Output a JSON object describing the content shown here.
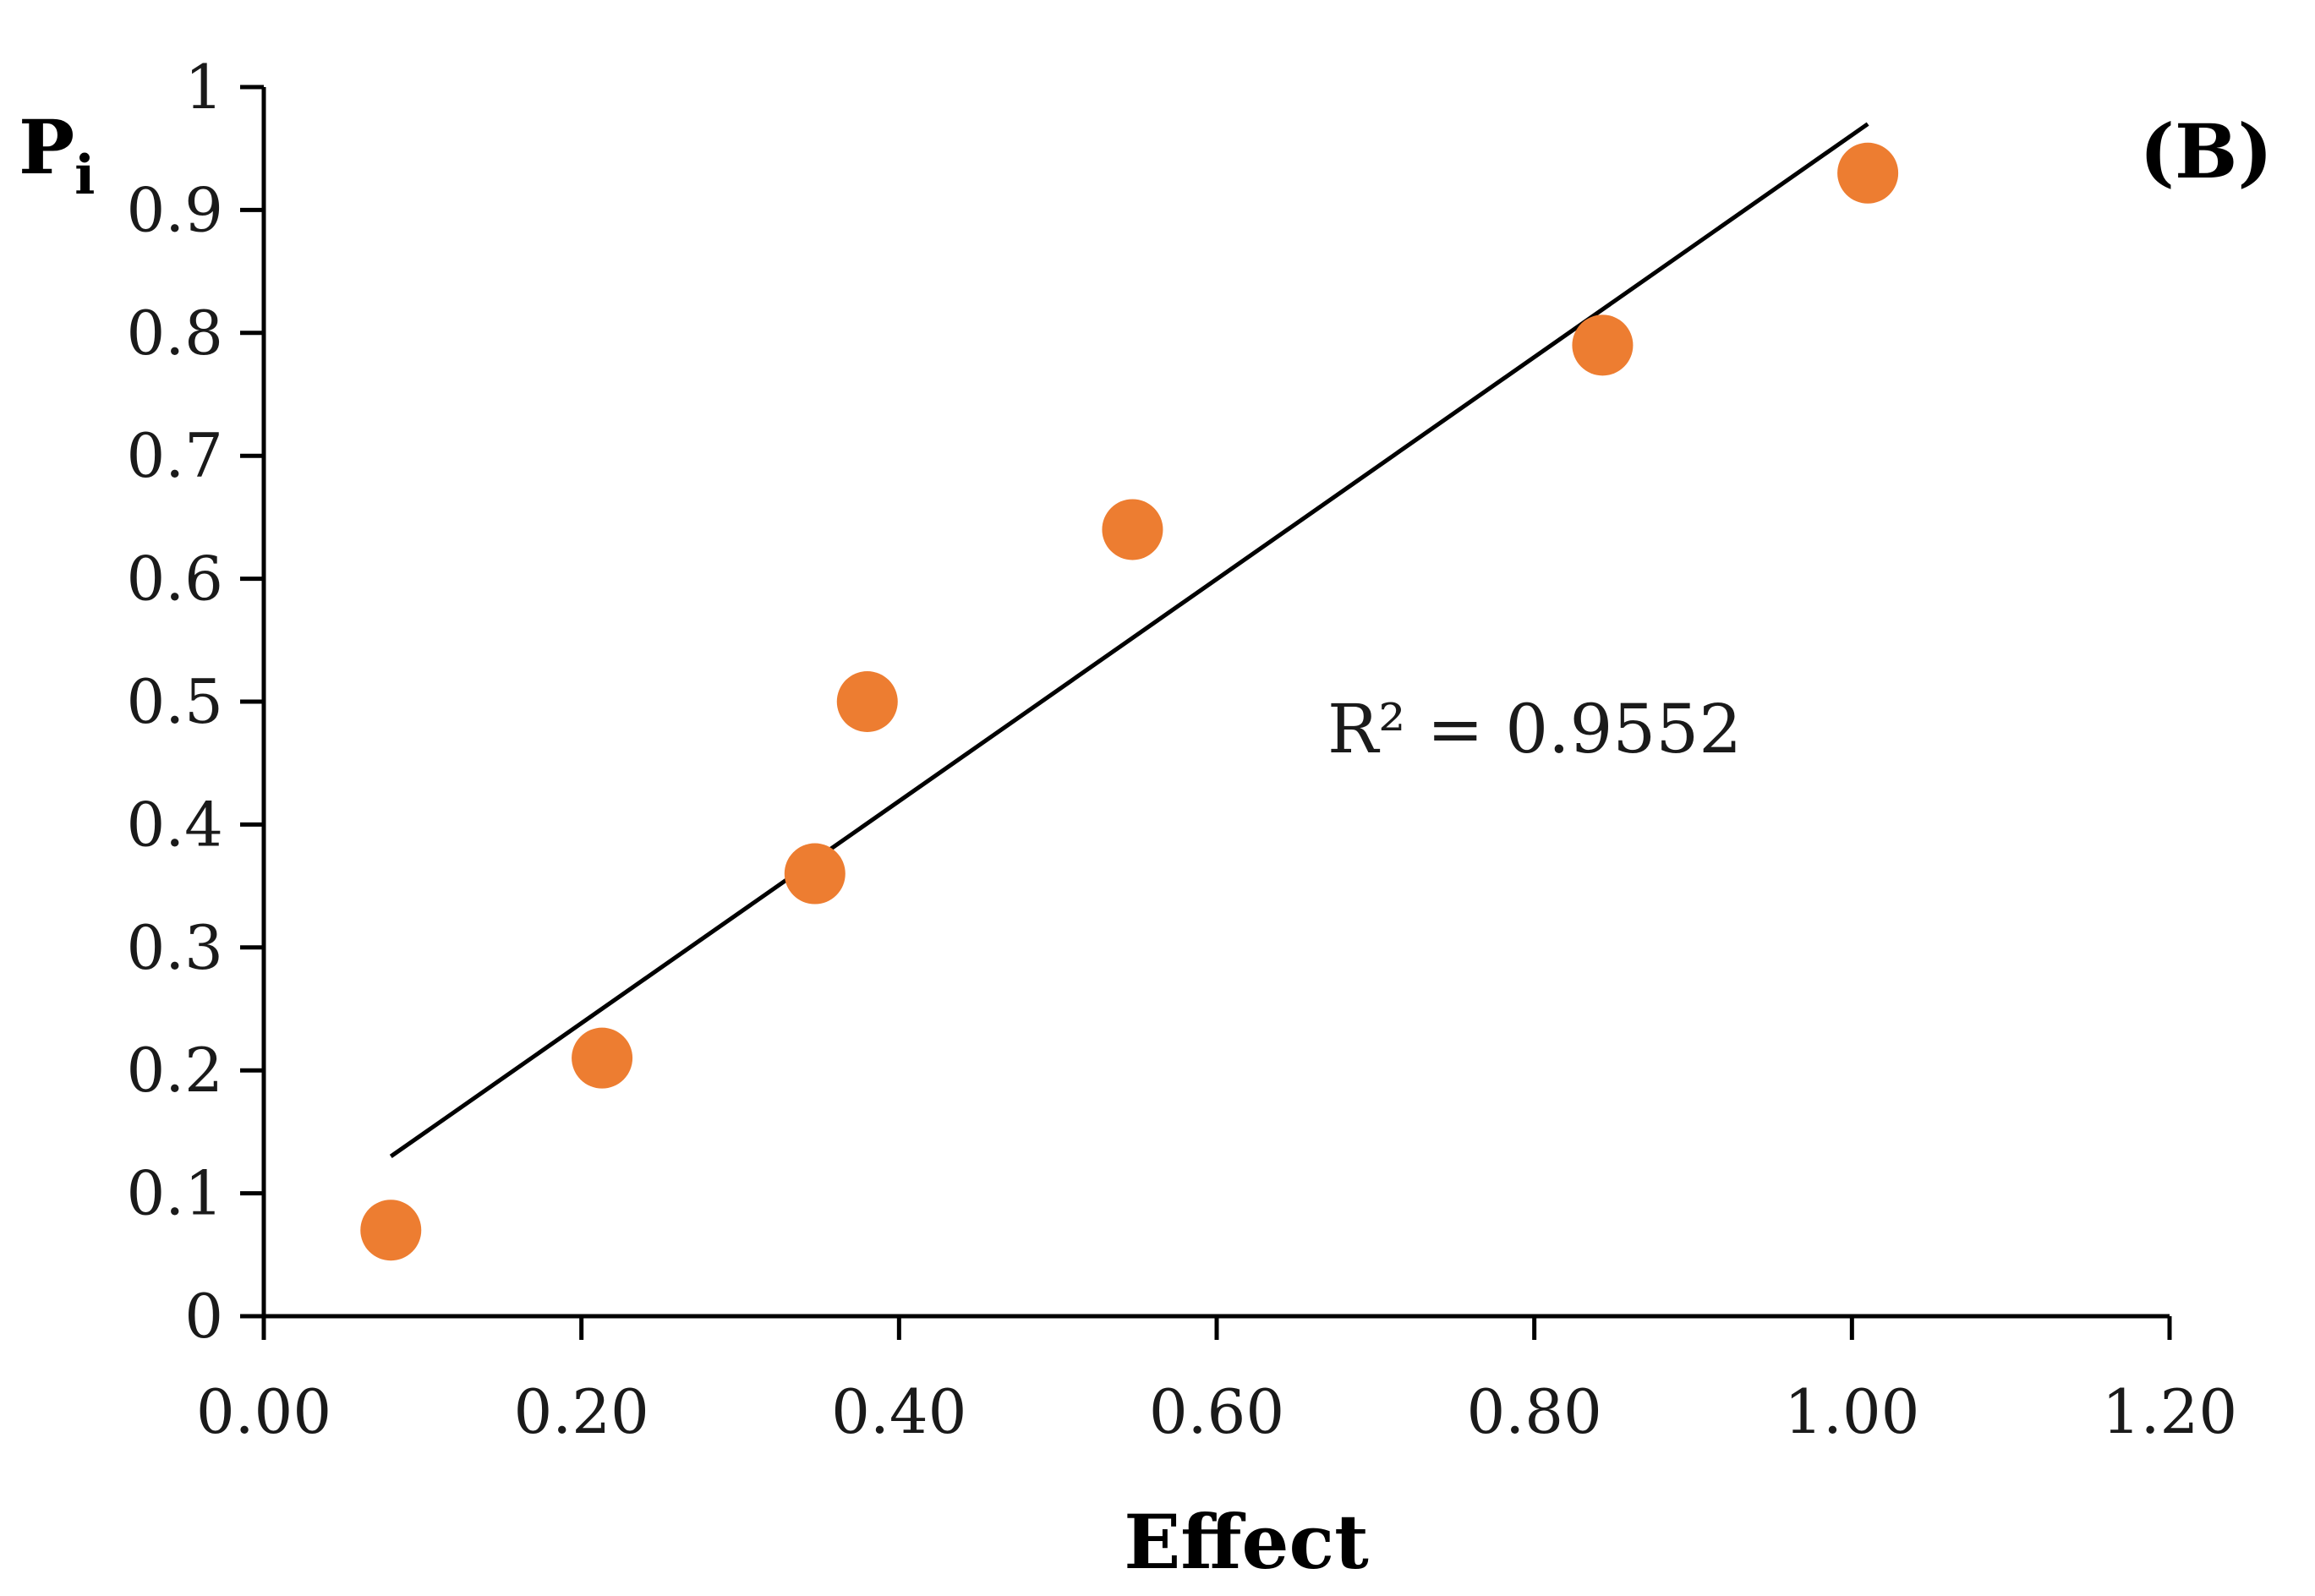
{
  "chart_data": {
    "type": "scatter",
    "panel_label": "(B)",
    "xlabel": "Effect",
    "ylabel": {
      "main": "P",
      "sub": "i"
    },
    "xlim": [
      0,
      1.2
    ],
    "ylim": [
      0,
      1
    ],
    "x_ticks": [
      "0.00",
      "0.20",
      "0.40",
      "0.60",
      "0.80",
      "1.00",
      "1.20"
    ],
    "y_ticks": [
      "0",
      "0.1",
      "0.2",
      "0.3",
      "0.4",
      "0.5",
      "0.6",
      "0.7",
      "0.8",
      "0.9",
      "1"
    ],
    "grid": false,
    "legend": "none",
    "series": [
      {
        "name": "Pi",
        "color": "#ED7D31",
        "x": [
          0.08,
          0.213,
          0.347,
          0.38,
          0.547,
          0.843,
          1.01
        ],
        "y": [
          0.07,
          0.21,
          0.36,
          0.5,
          0.64,
          0.79,
          0.93
        ]
      }
    ],
    "trendline": {
      "type": "linear",
      "color": "#000000",
      "x": [
        0.08,
        1.01
      ],
      "y": [
        0.13,
        0.97
      ]
    },
    "annotation": "R² = 0.9552"
  }
}
